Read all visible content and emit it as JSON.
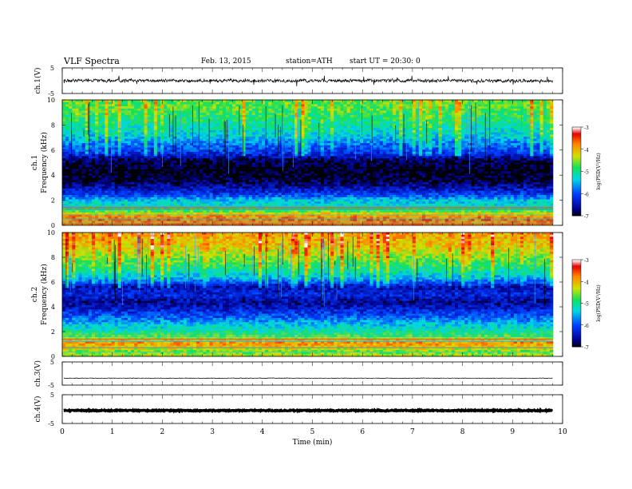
{
  "header": {
    "title": "VLF Spectra",
    "date": "Feb. 13, 2015",
    "station": "station=ATH",
    "start": "start UT =  20:30: 0"
  },
  "chart_data": [
    {
      "type": "line",
      "panel": "ch1-waveform",
      "ylabel": "ch.1(V)",
      "ylim": [
        -5,
        5
      ],
      "yticks": [
        "5",
        "-5"
      ],
      "xlim": [
        0,
        10
      ],
      "baseline": 0,
      "amplitude": 0.8,
      "color": "#000000"
    },
    {
      "type": "heatmap",
      "panel": "ch1-spectrogram",
      "ylabel": "ch.1\nFrequency (kHz)",
      "ylabel_lines": [
        "ch.1",
        "Frequency (kHz)"
      ],
      "ylim": [
        0,
        10
      ],
      "yticks": [
        "0",
        "2",
        "4",
        "6",
        "8",
        "10"
      ],
      "xlim": [
        0,
        9.8
      ],
      "colorbar": {
        "label": "log(PSD(V²/Hz)",
        "range": [
          -7,
          -3
        ],
        "ticks": [
          "-3",
          "-4",
          "-5",
          "-6",
          "-7"
        ]
      },
      "profile": [
        {
          "f": 0.0,
          "v": -4.0
        },
        {
          "f": 0.4,
          "v": -3.6
        },
        {
          "f": 0.8,
          "v": -3.9
        },
        {
          "f": 1.2,
          "v": -4.8
        },
        {
          "f": 1.6,
          "v": -5.2
        },
        {
          "f": 2.0,
          "v": -5.4
        },
        {
          "f": 2.4,
          "v": -6.0
        },
        {
          "f": 3.0,
          "v": -6.5
        },
        {
          "f": 3.6,
          "v": -6.9
        },
        {
          "f": 4.4,
          "v": -7.0
        },
        {
          "f": 5.2,
          "v": -6.8
        },
        {
          "f": 5.8,
          "v": -6.1
        },
        {
          "f": 6.4,
          "v": -5.8
        },
        {
          "f": 7.2,
          "v": -5.3
        },
        {
          "f": 8.2,
          "v": -5.0
        },
        {
          "f": 9.2,
          "v": -4.7
        },
        {
          "f": 10.0,
          "v": -4.6
        }
      ]
    },
    {
      "type": "heatmap",
      "panel": "ch2-spectrogram",
      "ylabel": "ch.2\nFrequency (kHz)",
      "ylabel_lines": [
        "ch.2",
        "Frequency (kHz)"
      ],
      "ylim": [
        0,
        10
      ],
      "yticks": [
        "0",
        "2",
        "4",
        "6",
        "8",
        "10"
      ],
      "xlim": [
        0,
        9.8
      ],
      "colorbar": {
        "label": "log(PSD(V²/Hz)",
        "range": [
          -7,
          -3
        ],
        "ticks": [
          "-3",
          "-4",
          "-5",
          "-6",
          "-7"
        ]
      },
      "profile": [
        {
          "f": 0.0,
          "v": -4.3
        },
        {
          "f": 0.4,
          "v": -4.6
        },
        {
          "f": 0.8,
          "v": -4.0
        },
        {
          "f": 1.2,
          "v": -3.8
        },
        {
          "f": 1.6,
          "v": -4.6
        },
        {
          "f": 2.0,
          "v": -5.0
        },
        {
          "f": 2.6,
          "v": -5.4
        },
        {
          "f": 3.2,
          "v": -5.9
        },
        {
          "f": 3.8,
          "v": -6.3
        },
        {
          "f": 4.4,
          "v": -6.6
        },
        {
          "f": 5.0,
          "v": -6.2
        },
        {
          "f": 5.6,
          "v": -6.5
        },
        {
          "f": 6.2,
          "v": -5.6
        },
        {
          "f": 7.0,
          "v": -5.0
        },
        {
          "f": 8.0,
          "v": -4.5
        },
        {
          "f": 9.0,
          "v": -4.1
        },
        {
          "f": 10.0,
          "v": -3.9
        }
      ]
    },
    {
      "type": "line",
      "panel": "ch3-waveform",
      "ylabel": "ch.3(V)",
      "ylim": [
        -5,
        5
      ],
      "yticks": [
        "5",
        "-5"
      ],
      "xlim": [
        0,
        10
      ],
      "baseline": -2.0,
      "amplitude": 0.15,
      "color": "#000000"
    },
    {
      "type": "line",
      "panel": "ch4-waveform",
      "ylabel": "ch.4(V)",
      "ylim": [
        -5,
        5
      ],
      "yticks": [
        "5",
        "-5"
      ],
      "xlim": [
        0,
        10
      ],
      "baseline": -0.5,
      "amplitude": 0.25,
      "color": "#000000",
      "xlabel": "Time (min)",
      "xticks": [
        "0",
        "1",
        "2",
        "3",
        "4",
        "5",
        "6",
        "7",
        "8",
        "9",
        "10"
      ]
    }
  ]
}
